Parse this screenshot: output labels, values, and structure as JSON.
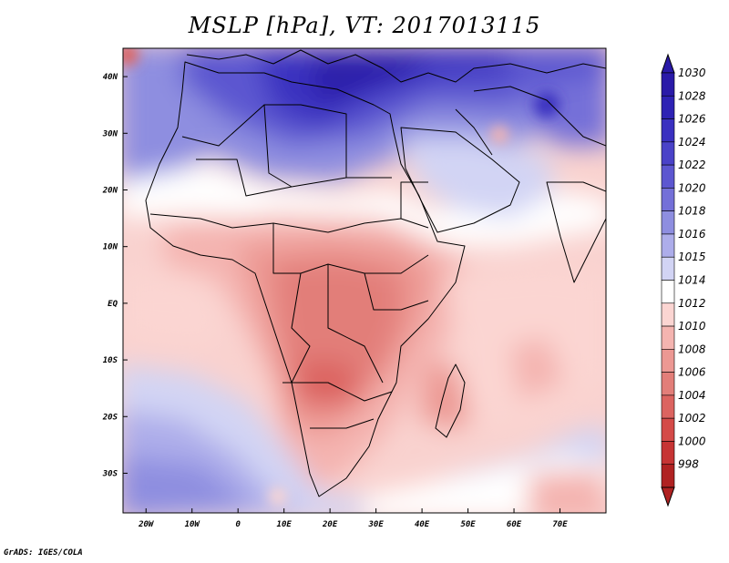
{
  "title": "MSLP [hPa], VT: 2017013115",
  "credit": "GrADS: IGES/COLA",
  "map": {
    "region": "Africa, Middle East and Indian Ocean",
    "lon_range": [
      -25,
      80
    ],
    "lat_range": [
      -37,
      45
    ],
    "lat_ticks": [
      {
        "value": 40,
        "label": "40N"
      },
      {
        "value": 30,
        "label": "30N"
      },
      {
        "value": 20,
        "label": "20N"
      },
      {
        "value": 10,
        "label": "10N"
      },
      {
        "value": 0,
        "label": "EQ"
      },
      {
        "value": -10,
        "label": "10S"
      },
      {
        "value": -20,
        "label": "20S"
      },
      {
        "value": -30,
        "label": "30S"
      }
    ],
    "lon_ticks": [
      {
        "value": -20,
        "label": "20W"
      },
      {
        "value": -10,
        "label": "10W"
      },
      {
        "value": 0,
        "label": "0"
      },
      {
        "value": 10,
        "label": "10E"
      },
      {
        "value": 20,
        "label": "20E"
      },
      {
        "value": 30,
        "label": "30E"
      },
      {
        "value": 40,
        "label": "40E"
      },
      {
        "value": 50,
        "label": "50E"
      },
      {
        "value": 60,
        "label": "60E"
      },
      {
        "value": 70,
        "label": "70E"
      }
    ]
  },
  "colorbar": {
    "levels": [
      {
        "label": "1030",
        "color": "#2a1aa8"
      },
      {
        "label": "1028",
        "color": "#2e22b4"
      },
      {
        "label": "1026",
        "color": "#3a30c0"
      },
      {
        "label": "1024",
        "color": "#4a42c8"
      },
      {
        "label": "1022",
        "color": "#5c56d0"
      },
      {
        "label": "1020",
        "color": "#7470d8"
      },
      {
        "label": "1018",
        "color": "#8e8ee0"
      },
      {
        "label": "1016",
        "color": "#adadea"
      },
      {
        "label": "1015",
        "color": "#d2d4f4"
      },
      {
        "label": "1014",
        "color": "#ffffff"
      },
      {
        "label": "1012",
        "color": "#fbd5d2"
      },
      {
        "label": "1010",
        "color": "#f4b4b0"
      },
      {
        "label": "1008",
        "color": "#ec9893"
      },
      {
        "label": "1006",
        "color": "#e27e79"
      },
      {
        "label": "1004",
        "color": "#dc6460"
      },
      {
        "label": "1002",
        "color": "#d44a48"
      },
      {
        "label": "1000",
        "color": "#c63434"
      },
      {
        "label": "998",
        "color": "#b02222"
      }
    ]
  }
}
